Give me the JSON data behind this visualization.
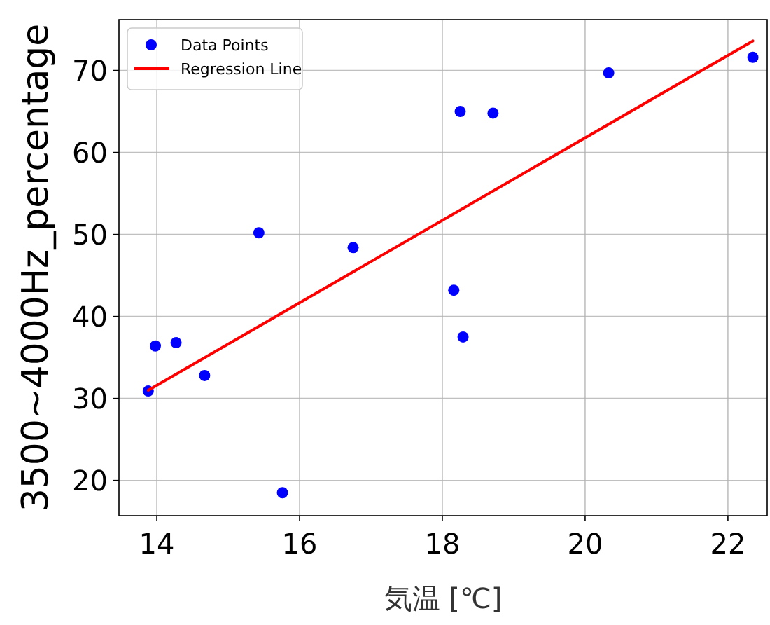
{
  "chart_data": {
    "type": "scatter",
    "xlabel": "気温 [℃]",
    "ylabel": "3500~4000Hz_percentage",
    "xlim": [
      13.47,
      22.55
    ],
    "ylim": [
      15.7,
      76.2
    ],
    "xticks": [
      14,
      16,
      18,
      20,
      22
    ],
    "yticks": [
      20,
      30,
      40,
      50,
      60,
      70
    ],
    "grid": true,
    "legend": "top left",
    "series": [
      {
        "name": "Data Points",
        "marker": "circle",
        "color": "#0000ff",
        "x": [
          13.88,
          13.98,
          14.27,
          14.67,
          15.43,
          15.76,
          16.75,
          18.16,
          18.29,
          18.25,
          18.71,
          20.33,
          22.35
        ],
        "values": [
          30.9,
          36.4,
          36.8,
          32.8,
          50.2,
          18.5,
          48.4,
          43.2,
          37.5,
          65.0,
          64.8,
          69.7,
          71.6
        ]
      },
      {
        "name": "Regression Line",
        "type": "line",
        "marker": "none",
        "line_style": "solid",
        "color": "#ff0000",
        "x": [
          13.88,
          22.35
        ],
        "values": [
          31.0,
          73.6
        ]
      }
    ]
  }
}
